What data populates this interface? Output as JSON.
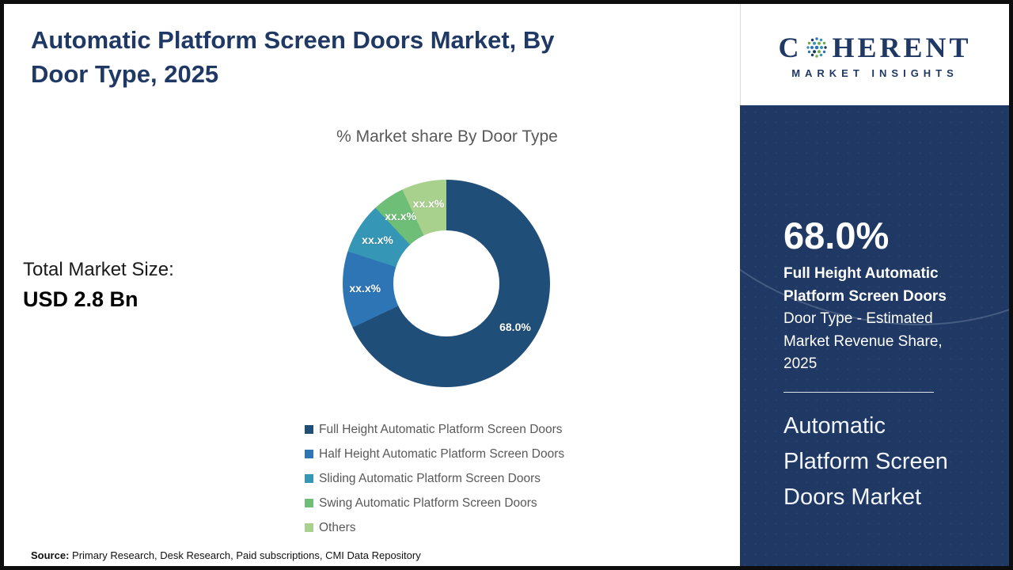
{
  "page": {
    "title": "Automatic Platform Screen Doors Market, By\nDoor Type, 2025",
    "source_label": "Source:",
    "source_text": " Primary Research, Desk Research, Paid subscriptions, CMI Data Repository"
  },
  "stats": {
    "total_label": "Total Market Size:",
    "total_value": "USD 2.8 Bn"
  },
  "logo": {
    "prefix": "C",
    "rest": "HERENT",
    "tagline": "MARKET INSIGHTS"
  },
  "sidebar": {
    "value": "68.0%",
    "highlight": "Full Height Automatic Platform Screen Doors ",
    "description": "Door Type - Estimated Market Revenue Share, 2025",
    "market_title": "Automatic Platform Screen Doors Market"
  },
  "chart_data": {
    "type": "pie",
    "donut": true,
    "title": "% Market share By Door Type",
    "categories": [
      "Full Height Automatic Platform Screen Doors",
      "Half Height Automatic Platform Screen Doors",
      "Sliding Automatic Platform Screen Doors",
      "Swing Automatic Platform Screen Doors",
      "Others"
    ],
    "values": [
      68,
      12,
      8,
      5,
      7
    ],
    "labels": [
      "68.0%",
      "xx.x%",
      "xx.x%",
      "xx.x%",
      "xx.x%"
    ],
    "colors": [
      "#1F4E79",
      "#2E75B6",
      "#3596B5",
      "#6FBE77",
      "#A9D18E"
    ],
    "legend_position": "bottom-left"
  }
}
